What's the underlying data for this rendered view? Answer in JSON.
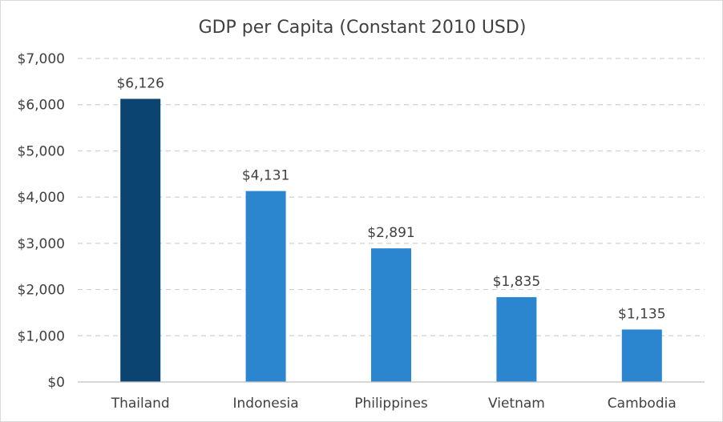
{
  "chart_data": {
    "type": "bar",
    "title": "GDP per Capita (Constant 2010 USD)",
    "xlabel": "",
    "ylabel": "",
    "categories": [
      "Thailand",
      "Indonesia",
      "Philippines",
      "Vietnam",
      "Cambodia"
    ],
    "values": [
      6126,
      4131,
      2891,
      1835,
      1135
    ],
    "data_labels": [
      "$6,126",
      "$4,131",
      "$2,891",
      "$1,835",
      "$1,135"
    ],
    "ylim": [
      0,
      7000
    ],
    "yticks": [
      0,
      1000,
      2000,
      3000,
      4000,
      5000,
      6000,
      7000
    ],
    "ytick_labels": [
      "$0",
      "$1,000",
      "$2,000",
      "$3,000",
      "$4,000",
      "$5,000",
      "$6,000",
      "$7,000"
    ],
    "grid": true,
    "legend": "none",
    "colors": {
      "highlight": "#0b4470",
      "default": "#2b86cf"
    },
    "highlight_index": 0
  }
}
